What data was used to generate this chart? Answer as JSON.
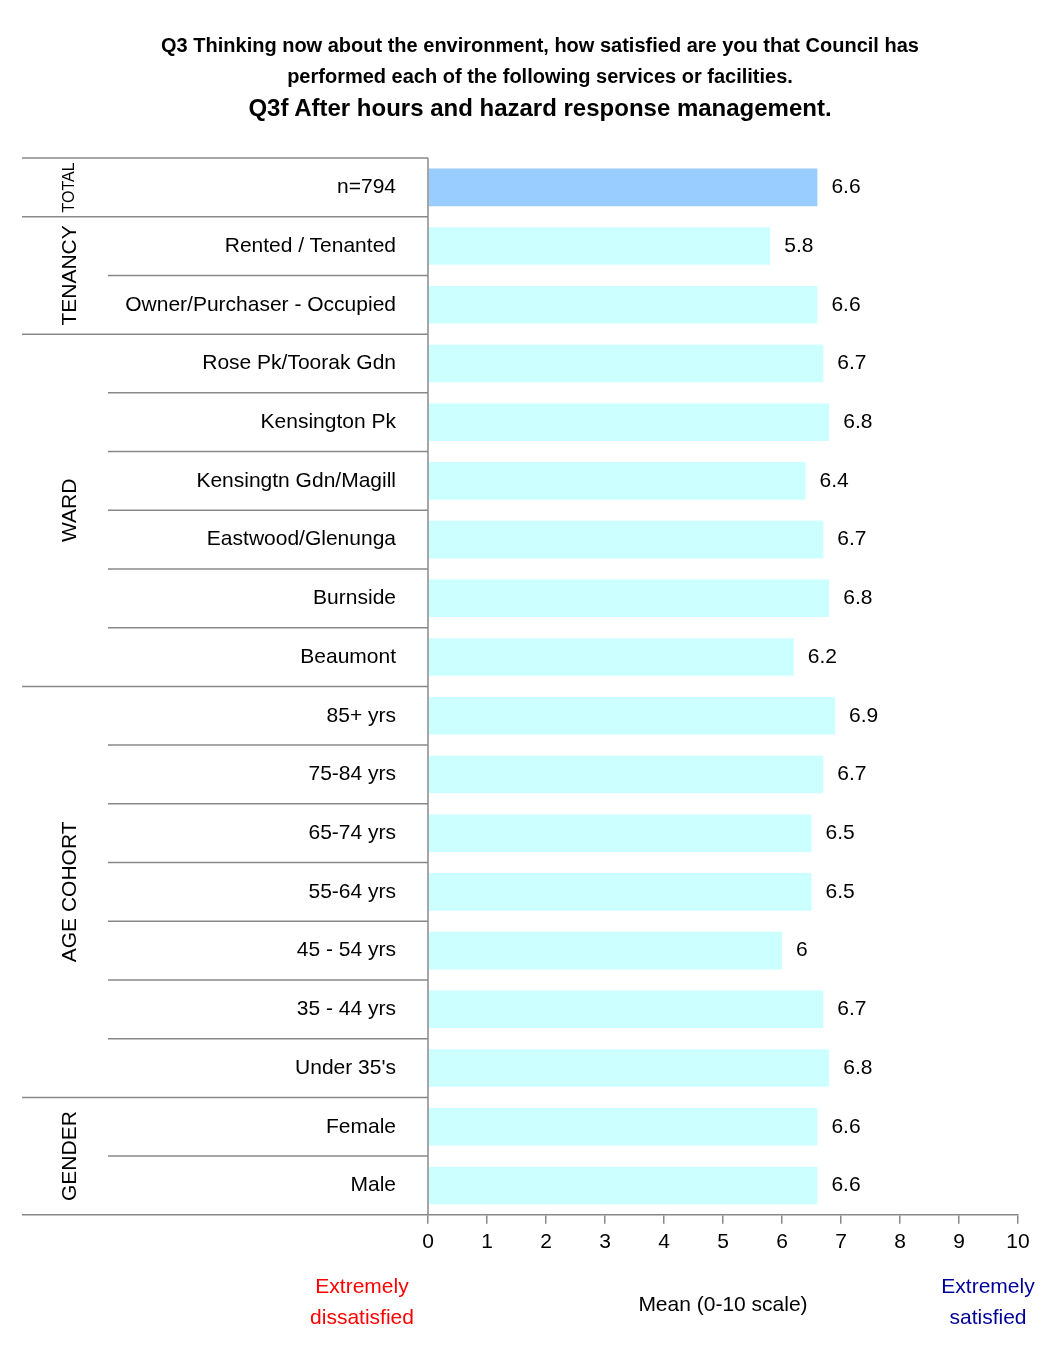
{
  "chart_data": {
    "type": "bar",
    "orientation": "horizontal",
    "title": "Q3 Thinking now about the environment, how satisfied are you that Council has performed each of the following services or facilities.",
    "subtitle": "Q3f After hours and hazard response management.",
    "xlabel": "Mean (0-10 scale)",
    "categories": [
      "n=794",
      "Rented / Tenanted",
      "Owner/Purchaser - Occupied",
      "Rose Pk/Toorak Gdn",
      "Kensington Pk",
      "Kensingtn Gdn/Magill",
      "Eastwood/Glenunga",
      "Burnside",
      "Beaumont",
      "85+ yrs",
      "75-84 yrs",
      "65-74 yrs",
      "55-64 yrs",
      "45 - 54 yrs",
      "35 - 44 yrs",
      "Under 35's",
      "Female",
      "Male"
    ],
    "values": [
      6.6,
      5.8,
      6.6,
      6.7,
      6.8,
      6.4,
      6.7,
      6.8,
      6.2,
      6.9,
      6.7,
      6.5,
      6.5,
      6,
      6.7,
      6.8,
      6.6,
      6.6
    ],
    "colors": [
      "#99ccff",
      "#ccffff",
      "#ccffff",
      "#ccffff",
      "#ccffff",
      "#ccffff",
      "#ccffff",
      "#ccffff",
      "#ccffff",
      "#ccffff",
      "#ccffff",
      "#ccffff",
      "#ccffff",
      "#ccffff",
      "#ccffff",
      "#ccffff",
      "#ccffff",
      "#ccffff"
    ],
    "xlim": [
      0,
      10
    ],
    "xticks": [
      0,
      1,
      2,
      3,
      4,
      5,
      6,
      7,
      8,
      9,
      10
    ],
    "grid": false,
    "legend": false,
    "data_labels": true,
    "annotations": [
      "TOTAL",
      "TENANCY",
      "WARD",
      "AGE COHORT",
      "GENDER",
      "Extremely dissatisfied",
      "Extremely satisfied"
    ]
  }
}
